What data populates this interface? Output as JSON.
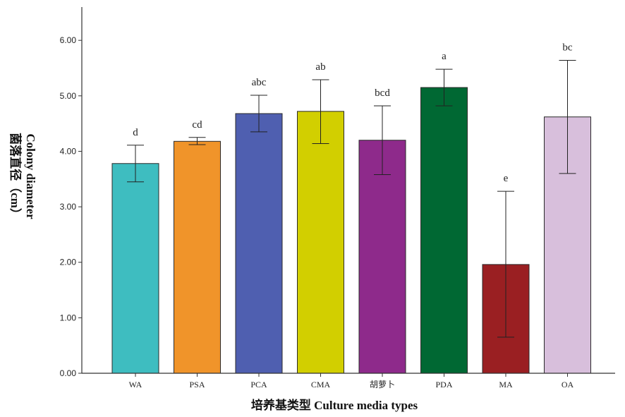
{
  "chart_data": {
    "type": "bar",
    "categories": [
      "WA",
      "PSA",
      "PCA",
      "CMA",
      "胡萝卜",
      "PDA",
      "MA",
      "OA"
    ],
    "values": [
      3.78,
      4.18,
      4.68,
      4.72,
      4.2,
      5.15,
      1.96,
      4.62
    ],
    "error_low": [
      3.45,
      4.12,
      4.35,
      4.14,
      3.58,
      4.82,
      0.65,
      3.6
    ],
    "error_high": [
      4.11,
      4.25,
      5.01,
      5.29,
      4.82,
      5.48,
      3.28,
      5.64
    ],
    "significance": [
      "d",
      "cd",
      "abc",
      "ab",
      "bcd",
      "a",
      "e",
      "bc"
    ],
    "colors": [
      "#3ebdc0",
      "#f0942a",
      "#4f5fb0",
      "#d2cf00",
      "#8e2a8b",
      "#006833",
      "#9a1f22",
      "#d8bfdc"
    ],
    "xlabel": "培养基类型 Culture media types",
    "ylabel_lines": [
      "Colony diameter",
      "菌落直径（cm）"
    ],
    "ylim": [
      0,
      6.6
    ],
    "yticks": [
      "0.00",
      "1.00",
      "2.00",
      "3.00",
      "4.00",
      "5.00",
      "6.00"
    ],
    "grid": false
  }
}
